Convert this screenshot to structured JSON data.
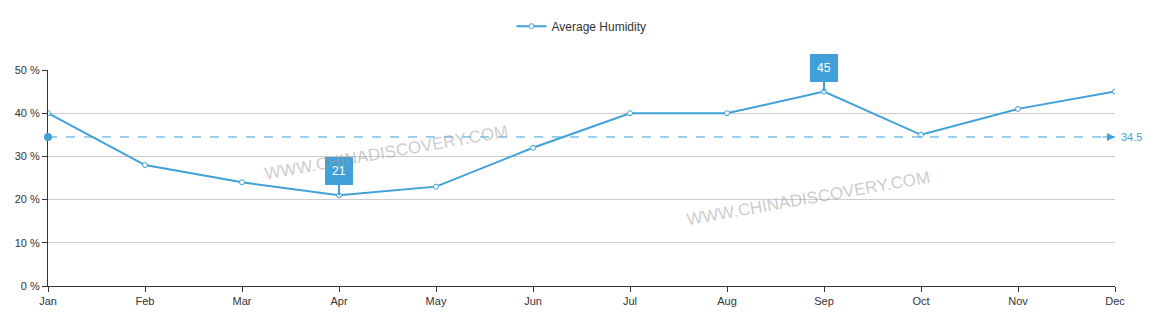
{
  "chart_data": {
    "type": "line",
    "categories": [
      "Jan",
      "Feb",
      "Mar",
      "Apr",
      "May",
      "Jun",
      "Jul",
      "Aug",
      "Sep",
      "Oct",
      "Nov",
      "Dec"
    ],
    "series": [
      {
        "name": "Average Humidity",
        "color": "#3fa1d8",
        "marker": "circle",
        "line_style": "solid",
        "values": [
          40,
          28,
          24,
          21,
          23,
          32,
          40,
          40,
          45,
          35,
          41,
          45
        ]
      }
    ],
    "ylim": [
      0,
      50
    ],
    "yticks": [
      {
        "value": 0,
        "label": "0 %"
      },
      {
        "value": 10,
        "label": "10 %"
      },
      {
        "value": 20,
        "label": "20 %"
      },
      {
        "value": 30,
        "label": "30 %"
      },
      {
        "value": 40,
        "label": "40 %"
      },
      {
        "value": 50,
        "label": "50 %"
      }
    ],
    "grid": true,
    "legend": "top",
    "mean_line": 34.5,
    "pins": [
      {
        "category": "Apr",
        "value": 21
      },
      {
        "category": "Sep",
        "value": 45
      }
    ],
    "annotations": [
      "WWW.CHINADISCOVERY.COM",
      "WWW.CHINADISCOVERY.COM"
    ]
  }
}
